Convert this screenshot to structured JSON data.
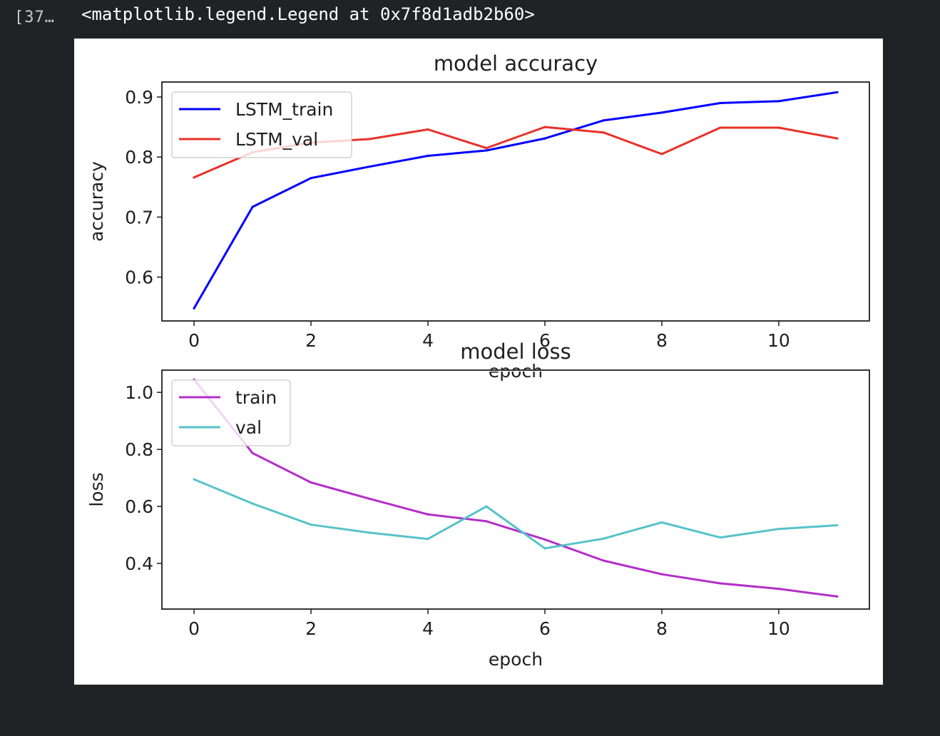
{
  "cell": {
    "execution_count": "[37…",
    "output_text": "<matplotlib.legend.Legend at 0x7f8d1adb2b60>"
  },
  "chart_data": [
    {
      "type": "line",
      "title": "model accuracy",
      "xlabel": "epoch",
      "ylabel": "accuracy",
      "xlim": [
        -0.55,
        11.55
      ],
      "ylim": [
        0.527,
        0.925
      ],
      "xticks": [
        0,
        2,
        4,
        6,
        8,
        10
      ],
      "yticks": [
        0.6,
        0.7,
        0.8,
        0.9
      ],
      "legend_position": "upper-left",
      "x": [
        0,
        1,
        2,
        3,
        4,
        5,
        6,
        7,
        8,
        9,
        10,
        11
      ],
      "series": [
        {
          "name": "LSTM_train",
          "color": "#0000ff",
          "values": [
            0.548,
            0.717,
            0.765,
            0.784,
            0.802,
            0.811,
            0.831,
            0.861,
            0.874,
            0.89,
            0.893,
            0.908
          ]
        },
        {
          "name": "LSTM_val",
          "color": "#e8312a",
          "values": [
            0.766,
            0.808,
            0.824,
            0.83,
            0.846,
            0.815,
            0.85,
            0.841,
            0.805,
            0.849,
            0.849,
            0.831
          ]
        }
      ]
    },
    {
      "type": "line",
      "title": "model loss",
      "xlabel": "epoch",
      "ylabel": "loss",
      "xlim": [
        -0.55,
        11.55
      ],
      "ylim": [
        0.24,
        1.078
      ],
      "xticks": [
        0,
        2,
        4,
        6,
        8,
        10
      ],
      "yticks": [
        0.4,
        0.6,
        0.8,
        1.0
      ],
      "legend_position": "upper-left",
      "x": [
        0,
        1,
        2,
        3,
        4,
        5,
        6,
        7,
        8,
        9,
        10,
        11
      ],
      "series": [
        {
          "name": "train",
          "color": "#b42fc8",
          "values": [
            1.045,
            0.787,
            0.684,
            0.627,
            0.572,
            0.548,
            0.484,
            0.41,
            0.362,
            0.33,
            0.311,
            0.284
          ]
        },
        {
          "name": "val",
          "color": "#57c2cb",
          "values": [
            0.695,
            0.61,
            0.536,
            0.508,
            0.486,
            0.6,
            0.453,
            0.487,
            0.544,
            0.491,
            0.521,
            0.534
          ]
        }
      ]
    }
  ]
}
